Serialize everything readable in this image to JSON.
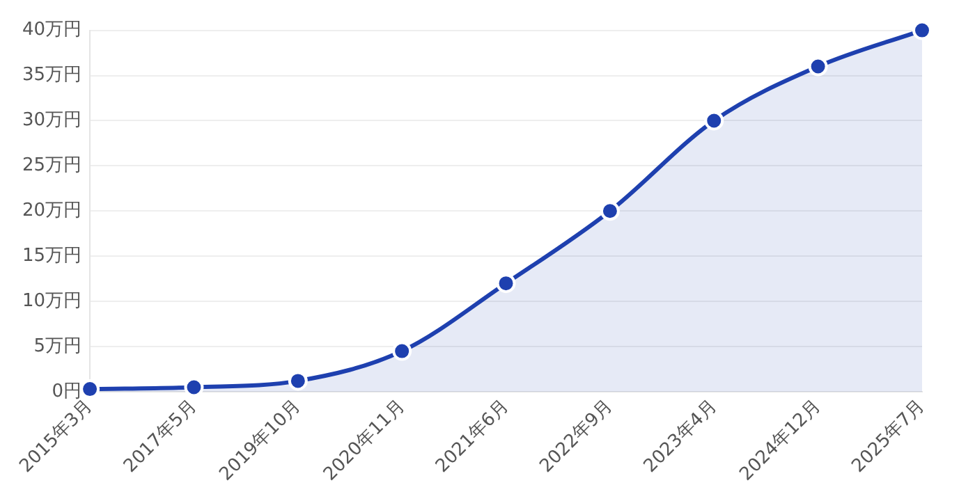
{
  "chart_data": {
    "type": "area",
    "categories": [
      "2015年3月",
      "2017年5月",
      "2019年10月",
      "2020年11月",
      "2021年6月",
      "2022年9月",
      "2023年4月",
      "2024年12月",
      "2025年7月"
    ],
    "series": [
      {
        "color": "#1e40af",
        "values": [
          0.3,
          0.5,
          1.2,
          4.5,
          12,
          20,
          30,
          36,
          40
        ]
      }
    ],
    "ylim": [
      0,
      40
    ],
    "yticks": [
      {
        "value": 0,
        "label": "0円"
      },
      {
        "value": 5,
        "label": "5万円"
      },
      {
        "value": 10,
        "label": "10万円"
      },
      {
        "value": 15,
        "label": "15万円"
      },
      {
        "value": 20,
        "label": "20万円"
      },
      {
        "value": 25,
        "label": "25万円"
      },
      {
        "value": 30,
        "label": "30万円"
      },
      {
        "value": 35,
        "label": "35万円"
      },
      {
        "value": 40,
        "label": "40万円"
      }
    ],
    "grid": "y",
    "legend": false,
    "marker": "circle",
    "line_style": "solid"
  }
}
